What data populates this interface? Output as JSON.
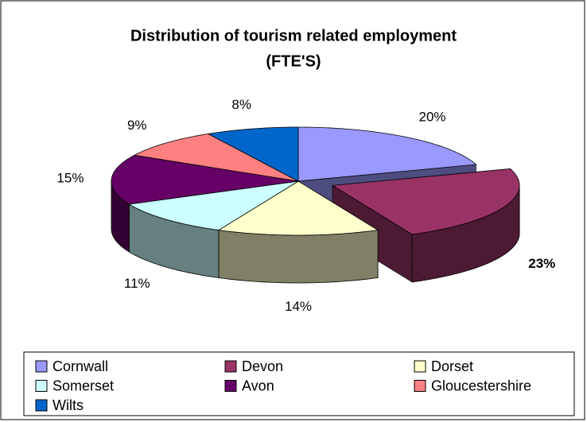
{
  "chart_data": {
    "type": "pie",
    "title": [
      "Distribution of tourism related employment",
      "(FTE'S)"
    ],
    "categories": [
      "Cornwall",
      "Devon",
      "Dorset",
      "Somerset",
      "Avon",
      "Gloucestershire",
      "Wilts"
    ],
    "values": [
      20,
      23,
      14,
      11,
      15,
      9,
      8
    ],
    "value_labels": [
      "20%",
      "23%",
      "14%",
      "11%",
      "15%",
      "9%",
      "8%"
    ],
    "colors": [
      "#9999ff",
      "#993366",
      "#ffffcc",
      "#ccffff",
      "#660066",
      "#ff8080",
      "#0066cc"
    ],
    "exploded": "Devon",
    "legend": "bottom"
  }
}
